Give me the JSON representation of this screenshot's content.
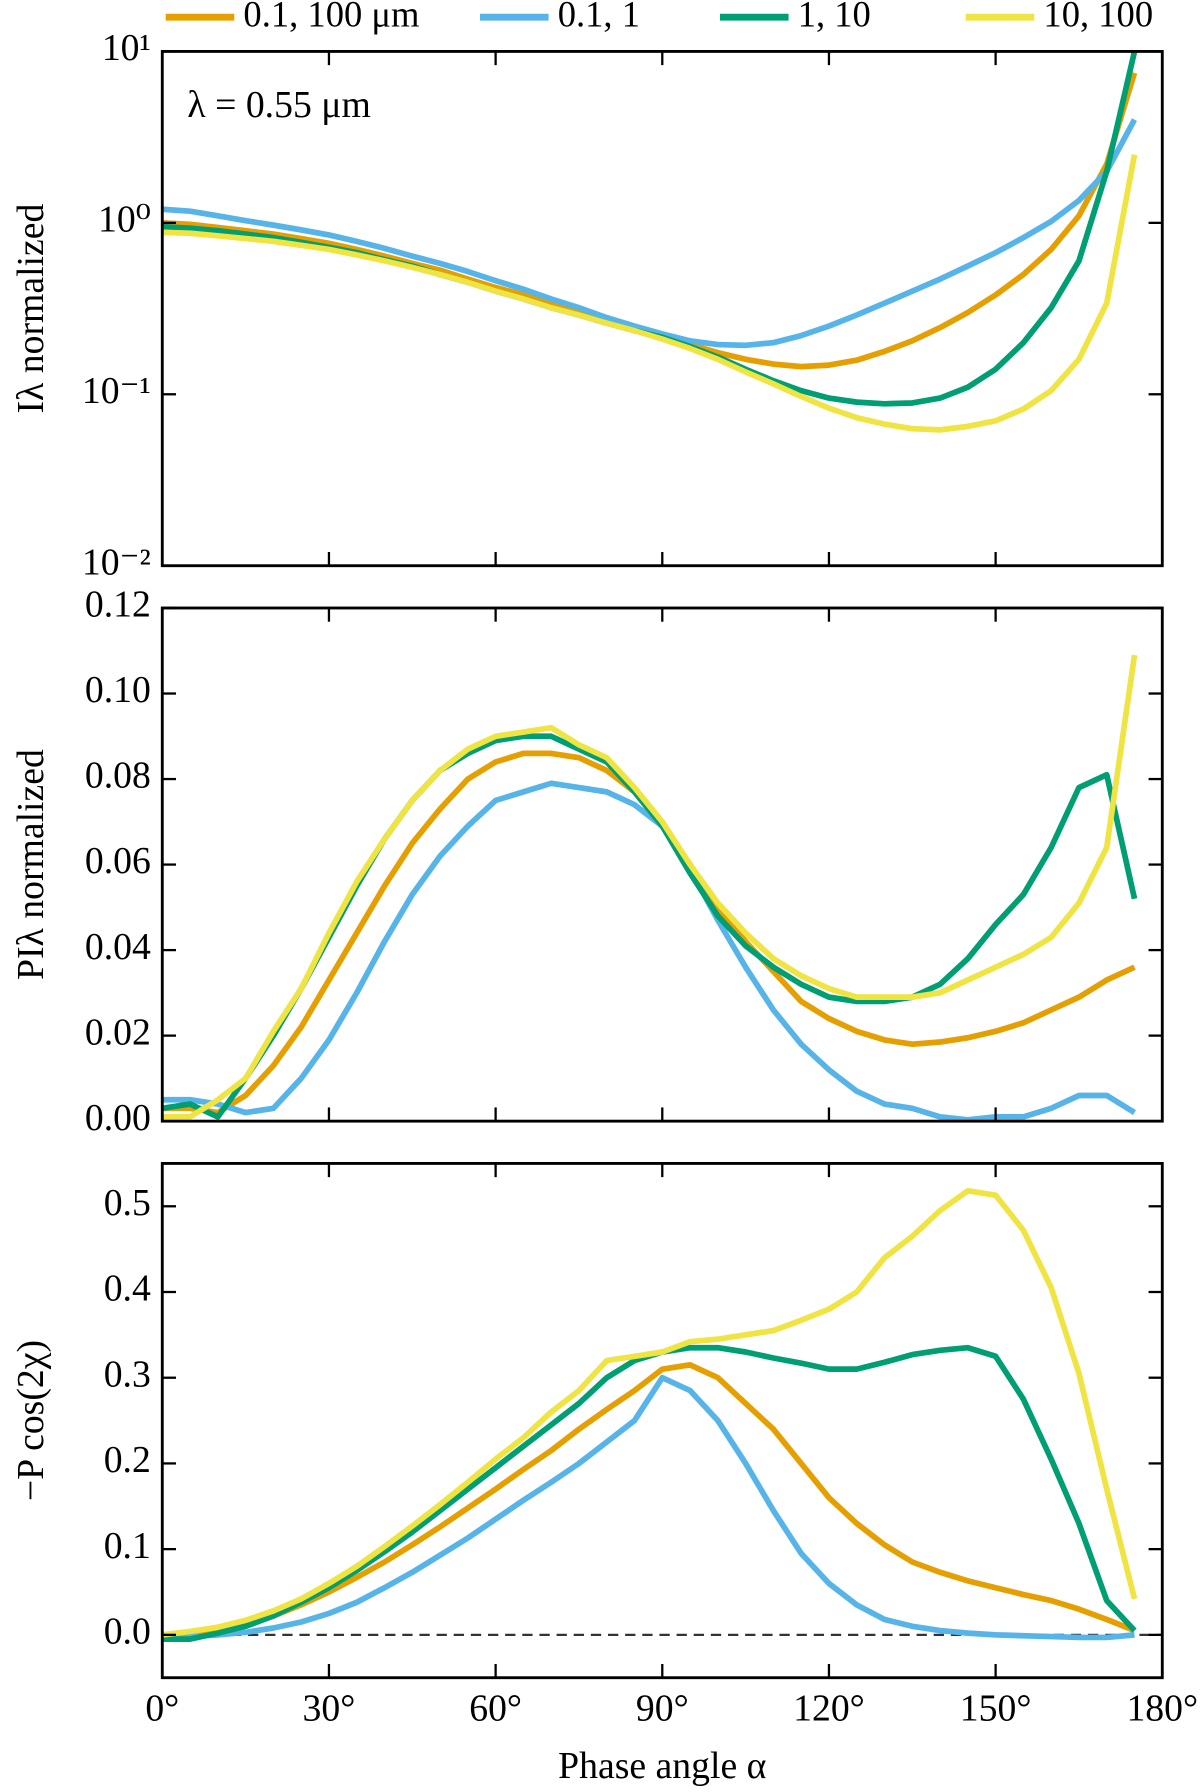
{
  "chart_data": [
    {
      "type": "line",
      "log_y": true,
      "annotation": "λ = 0.55 μm",
      "ylabel": "Iλ normalized",
      "x": [
        0,
        5,
        10,
        15,
        20,
        25,
        30,
        35,
        40,
        45,
        50,
        55,
        60,
        65,
        70,
        75,
        80,
        85,
        90,
        95,
        100,
        105,
        110,
        115,
        120,
        125,
        130,
        135,
        140,
        145,
        150,
        155,
        160,
        165,
        170,
        175
      ],
      "xlim": [
        0,
        180
      ],
      "xticks": [
        {
          "value": 0,
          "label": "0°"
        },
        {
          "value": 30,
          "label": "30°"
        },
        {
          "value": 60,
          "label": "60°"
        },
        {
          "value": 90,
          "label": "90°"
        },
        {
          "value": 120,
          "label": "120°"
        },
        {
          "value": 150,
          "label": "150°"
        },
        {
          "value": 180,
          "label": "180°"
        }
      ],
      "ylim": [
        0.01,
        10
      ],
      "yticks": [
        {
          "value": 0.01,
          "label": "10⁻²"
        },
        {
          "value": 0.1,
          "label": "10⁻¹"
        },
        {
          "value": 1,
          "label": "10⁰"
        },
        {
          "value": 10,
          "label": "10¹"
        }
      ],
      "legend": "top",
      "series": [
        {
          "name": "0.1, 100 μm",
          "color": "#E69F00",
          "values": [
            1.0,
            0.98,
            0.94,
            0.9,
            0.86,
            0.81,
            0.76,
            0.7,
            0.64,
            0.58,
            0.53,
            0.47,
            0.42,
            0.38,
            0.34,
            0.3,
            0.27,
            0.24,
            0.22,
            0.195,
            0.175,
            0.16,
            0.15,
            0.145,
            0.148,
            0.158,
            0.178,
            0.205,
            0.245,
            0.3,
            0.38,
            0.5,
            0.7,
            1.1,
            2.2,
            7.5
          ]
        },
        {
          "name": "0.1, 1",
          "color": "#56B4E9",
          "values": [
            1.2,
            1.17,
            1.1,
            1.03,
            0.97,
            0.91,
            0.85,
            0.78,
            0.71,
            0.64,
            0.58,
            0.52,
            0.46,
            0.41,
            0.36,
            0.32,
            0.28,
            0.25,
            0.225,
            0.205,
            0.195,
            0.193,
            0.2,
            0.22,
            0.25,
            0.29,
            0.34,
            0.4,
            0.47,
            0.56,
            0.67,
            0.82,
            1.02,
            1.35,
            2.0,
            4.0
          ]
        },
        {
          "name": "1, 10",
          "color": "#009E73",
          "values": [
            0.95,
            0.93,
            0.9,
            0.86,
            0.82,
            0.77,
            0.72,
            0.67,
            0.61,
            0.56,
            0.5,
            0.45,
            0.4,
            0.36,
            0.32,
            0.29,
            0.26,
            0.235,
            0.215,
            0.19,
            0.165,
            0.14,
            0.12,
            0.105,
            0.095,
            0.09,
            0.088,
            0.089,
            0.095,
            0.11,
            0.14,
            0.2,
            0.32,
            0.6,
            2.0,
            10
          ]
        },
        {
          "name": "10, 100",
          "color": "#F0E442",
          "values": [
            0.88,
            0.87,
            0.84,
            0.81,
            0.78,
            0.74,
            0.7,
            0.65,
            0.6,
            0.55,
            0.5,
            0.45,
            0.4,
            0.36,
            0.32,
            0.29,
            0.26,
            0.235,
            0.21,
            0.185,
            0.16,
            0.135,
            0.115,
            0.097,
            0.083,
            0.073,
            0.067,
            0.063,
            0.062,
            0.065,
            0.07,
            0.082,
            0.105,
            0.16,
            0.34,
            2.5
          ]
        }
      ]
    },
    {
      "type": "line",
      "ylabel": "PIλ normalized",
      "x": [
        0,
        5,
        10,
        15,
        20,
        25,
        30,
        35,
        40,
        45,
        50,
        55,
        60,
        65,
        70,
        75,
        80,
        85,
        90,
        95,
        100,
        105,
        110,
        115,
        120,
        125,
        130,
        135,
        140,
        145,
        150,
        155,
        160,
        165,
        170,
        175
      ],
      "xlim": [
        0,
        180
      ],
      "xticks": [
        {
          "value": 0,
          "label": "0°"
        },
        {
          "value": 30,
          "label": "30°"
        },
        {
          "value": 60,
          "label": "60°"
        },
        {
          "value": 90,
          "label": "90°"
        },
        {
          "value": 120,
          "label": "120°"
        },
        {
          "value": 150,
          "label": "150°"
        },
        {
          "value": 180,
          "label": "180°"
        }
      ],
      "ylim": [
        0,
        0.12
      ],
      "yticks": [
        {
          "value": 0,
          "label": "0.00"
        },
        {
          "value": 0.02,
          "label": "0.02"
        },
        {
          "value": 0.04,
          "label": "0.04"
        },
        {
          "value": 0.06,
          "label": "0.06"
        },
        {
          "value": 0.08,
          "label": "0.08"
        },
        {
          "value": 0.1,
          "label": "0.10"
        },
        {
          "value": 0.12,
          "label": "0.12"
        }
      ],
      "series": [
        {
          "name": "0.1, 100 μm",
          "color": "#E69F00",
          "values": [
            0.003,
            0.003,
            0.002,
            0.006,
            0.013,
            0.022,
            0.033,
            0.044,
            0.055,
            0.065,
            0.073,
            0.08,
            0.084,
            0.086,
            0.086,
            0.085,
            0.082,
            0.077,
            0.069,
            0.06,
            0.05,
            0.042,
            0.035,
            0.028,
            0.024,
            0.021,
            0.019,
            0.018,
            0.0185,
            0.0195,
            0.021,
            0.023,
            0.026,
            0.029,
            0.033,
            0.036
          ]
        },
        {
          "name": "0.1, 1",
          "color": "#56B4E9",
          "values": [
            0.005,
            0.005,
            0.004,
            0.002,
            0.003,
            0.01,
            0.019,
            0.03,
            0.042,
            0.053,
            0.062,
            0.069,
            0.075,
            0.077,
            0.079,
            0.078,
            0.077,
            0.074,
            0.069,
            0.059,
            0.047,
            0.036,
            0.026,
            0.018,
            0.012,
            0.007,
            0.004,
            0.003,
            0.001,
            0.0003,
            0.001,
            0.001,
            0.003,
            0.006,
            0.006,
            0.002
          ]
        },
        {
          "name": "1, 10",
          "color": "#009E73",
          "values": [
            0.003,
            0.004,
            0.001,
            0.01,
            0.02,
            0.031,
            0.043,
            0.055,
            0.066,
            0.075,
            0.082,
            0.086,
            0.089,
            0.09,
            0.09,
            0.087,
            0.084,
            0.077,
            0.069,
            0.058,
            0.048,
            0.041,
            0.036,
            0.032,
            0.029,
            0.028,
            0.028,
            0.029,
            0.032,
            0.038,
            0.046,
            0.053,
            0.064,
            0.078,
            0.081,
            0.052
          ]
        },
        {
          "name": "10, 100",
          "color": "#F0E442",
          "values": [
            0.001,
            0.001,
            0.005,
            0.01,
            0.021,
            0.031,
            0.044,
            0.056,
            0.066,
            0.075,
            0.082,
            0.087,
            0.09,
            0.091,
            0.092,
            0.088,
            0.085,
            0.078,
            0.07,
            0.06,
            0.051,
            0.044,
            0.038,
            0.034,
            0.031,
            0.029,
            0.029,
            0.029,
            0.03,
            0.033,
            0.036,
            0.039,
            0.043,
            0.051,
            0.064,
            0.109
          ]
        }
      ]
    },
    {
      "type": "line",
      "ylabel": "−P cos(2χ)",
      "xlabel": "Phase angle α",
      "hline": 0,
      "x": [
        0,
        5,
        10,
        15,
        20,
        25,
        30,
        35,
        40,
        45,
        50,
        55,
        60,
        65,
        70,
        75,
        80,
        85,
        90,
        95,
        100,
        105,
        110,
        115,
        120,
        125,
        130,
        135,
        140,
        145,
        150,
        155,
        160,
        165,
        170,
        175
      ],
      "xlim": [
        0,
        180
      ],
      "xticks": [
        {
          "value": 0,
          "label": "0°"
        },
        {
          "value": 30,
          "label": "30°"
        },
        {
          "value": 60,
          "label": "60°"
        },
        {
          "value": 90,
          "label": "90°"
        },
        {
          "value": 120,
          "label": "120°"
        },
        {
          "value": 150,
          "label": "150°"
        },
        {
          "value": 180,
          "label": "180°"
        }
      ],
      "ylim": [
        -0.05,
        0.55
      ],
      "yticks": [
        {
          "value": 0,
          "label": "0.0"
        },
        0.1,
        0.2,
        0.3,
        0.4,
        0.5
      ],
      "series": [
        {
          "name": "0.1, 100 μm",
          "color": "#E69F00",
          "values": [
            -0.003,
            0.0,
            0.005,
            0.012,
            0.022,
            0.035,
            0.05,
            0.067,
            0.085,
            0.105,
            0.126,
            0.148,
            0.17,
            0.193,
            0.215,
            0.24,
            0.263,
            0.285,
            0.31,
            0.315,
            0.3,
            0.27,
            0.24,
            0.2,
            0.16,
            0.13,
            0.105,
            0.085,
            0.073,
            0.063,
            0.055,
            0.047,
            0.04,
            0.03,
            0.018,
            0.005
          ]
        },
        {
          "name": "0.1, 1",
          "color": "#56B4E9",
          "values": [
            0.0,
            -0.002,
            0.0,
            0.003,
            0.008,
            0.015,
            0.025,
            0.038,
            0.055,
            0.073,
            0.093,
            0.113,
            0.135,
            0.157,
            0.178,
            0.2,
            0.225,
            0.25,
            0.3,
            0.285,
            0.25,
            0.2,
            0.145,
            0.095,
            0.06,
            0.035,
            0.018,
            0.01,
            0.005,
            0.002,
            0.0,
            -0.001,
            -0.002,
            -0.003,
            -0.003,
            0.0
          ]
        },
        {
          "name": "1, 10",
          "color": "#009E73",
          "values": [
            -0.005,
            -0.005,
            0.002,
            0.01,
            0.022,
            0.038,
            0.055,
            0.075,
            0.097,
            0.12,
            0.145,
            0.17,
            0.195,
            0.22,
            0.245,
            0.27,
            0.3,
            0.32,
            0.33,
            0.335,
            0.335,
            0.33,
            0.323,
            0.317,
            0.31,
            0.31,
            0.318,
            0.327,
            0.332,
            0.335,
            0.325,
            0.275,
            0.205,
            0.13,
            0.04,
            0.005
          ]
        },
        {
          "name": "10, 100",
          "color": "#F0E442",
          "values": [
            0.0,
            0.004,
            0.009,
            0.017,
            0.028,
            0.042,
            0.06,
            0.08,
            0.103,
            0.127,
            0.152,
            0.178,
            0.205,
            0.23,
            0.26,
            0.285,
            0.32,
            0.325,
            0.33,
            0.342,
            0.345,
            0.35,
            0.355,
            0.367,
            0.38,
            0.4,
            0.44,
            0.465,
            0.495,
            0.518,
            0.513,
            0.472,
            0.405,
            0.305,
            0.17,
            0.042
          ]
        }
      ]
    }
  ]
}
